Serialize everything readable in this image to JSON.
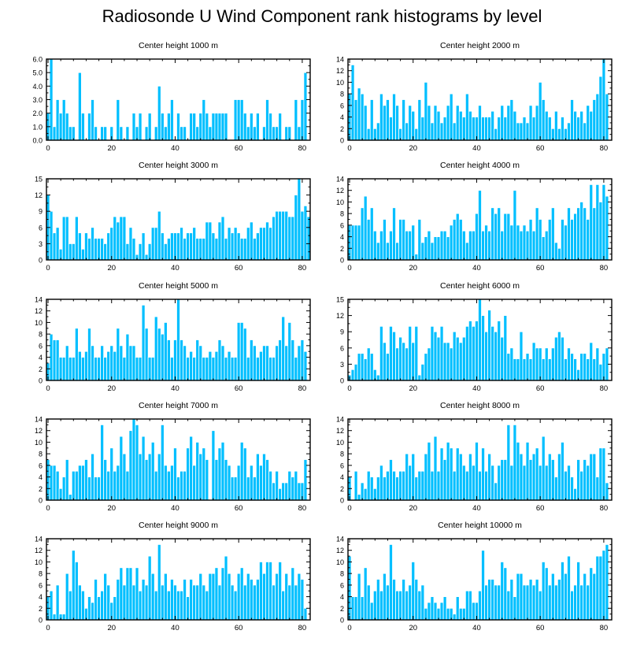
{
  "title": "Radiosonde U Wind Component rank histograms by level",
  "style": {
    "bar_color": "#00bfff",
    "bar_stroke": "#ffffff",
    "axis_color": "#000000"
  },
  "chart_data": [
    {
      "type": "bar",
      "title": "Center height 1000 m",
      "xlabel": "",
      "ylabel": "",
      "xlim": [
        -0.5,
        82.5
      ],
      "ylim": [
        0,
        6
      ],
      "xticks": [
        0,
        20,
        40,
        60,
        80
      ],
      "xtick_labels": [
        "0",
        "20",
        "40",
        "60",
        "80"
      ],
      "yticks": [
        0,
        1,
        2,
        3,
        4,
        5,
        6
      ],
      "ytick_labels": [
        "0.0",
        "1.0",
        "2.0",
        "3.0",
        "4.0",
        "5.0",
        "6.0"
      ],
      "values": [
        2,
        6,
        1,
        3,
        2,
        3,
        2,
        1,
        1,
        0,
        5,
        2,
        0,
        2,
        3,
        1,
        0,
        1,
        1,
        0,
        1,
        0,
        3,
        1,
        0,
        1,
        0,
        2,
        1,
        2,
        0,
        1,
        2,
        0,
        1,
        4,
        2,
        1,
        2,
        3,
        0,
        2,
        1,
        1,
        0,
        2,
        2,
        1,
        2,
        3,
        2,
        1,
        2,
        2,
        2,
        2,
        2,
        0,
        0,
        3,
        3,
        3,
        2,
        1,
        2,
        1,
        2,
        0,
        1,
        3,
        2,
        1,
        1,
        2,
        0,
        1,
        1,
        0,
        3,
        1,
        3,
        5
      ]
    },
    {
      "type": "bar",
      "title": "Center height 2000 m",
      "xlabel": "",
      "ylabel": "",
      "xlim": [
        -0.5,
        82.5
      ],
      "ylim": [
        0,
        14
      ],
      "xticks": [
        0,
        20,
        40,
        60,
        80
      ],
      "xtick_labels": [
        "0",
        "20",
        "40",
        "60",
        "80"
      ],
      "yticks": [
        0,
        2,
        4,
        6,
        8,
        10,
        12,
        14
      ],
      "ytick_labels": [
        "0",
        "2",
        "4",
        "6",
        "8",
        "10",
        "12",
        "14"
      ],
      "values": [
        8,
        13,
        7,
        9,
        8,
        6,
        2,
        7,
        2,
        3,
        8,
        6,
        7,
        4,
        8,
        6,
        2,
        7,
        3,
        6,
        5,
        2,
        7,
        4,
        10,
        6,
        3,
        6,
        5,
        3,
        4,
        6,
        8,
        3,
        6,
        5,
        4,
        8,
        5,
        4,
        4,
        6,
        4,
        4,
        4,
        5,
        2,
        4,
        6,
        4,
        6,
        7,
        5,
        3,
        3,
        4,
        3,
        6,
        4,
        6,
        10,
        7,
        5,
        4,
        2,
        5,
        2,
        4,
        2,
        3,
        7,
        5,
        4,
        5,
        3,
        6,
        5,
        7,
        8,
        11,
        14,
        8
      ]
    },
    {
      "type": "bar",
      "title": "Center height 3000 m",
      "xlabel": "",
      "ylabel": "",
      "xlim": [
        -0.5,
        82.5
      ],
      "ylim": [
        0,
        15
      ],
      "xticks": [
        0,
        20,
        40,
        60,
        80
      ],
      "xtick_labels": [
        "0",
        "20",
        "40",
        "60",
        "80"
      ],
      "yticks": [
        0,
        3,
        6,
        9,
        12,
        15
      ],
      "ytick_labels": [
        "0",
        "3",
        "6",
        "9",
        "12",
        "15"
      ],
      "values": [
        12,
        9,
        5,
        6,
        2,
        8,
        8,
        3,
        3,
        8,
        5,
        2,
        5,
        4,
        6,
        4,
        4,
        4,
        3,
        5,
        6,
        8,
        7,
        8,
        8,
        3,
        6,
        4,
        1,
        3,
        5,
        1,
        3,
        6,
        6,
        9,
        5,
        3,
        4,
        5,
        5,
        5,
        6,
        4,
        5,
        5,
        6,
        4,
        4,
        4,
        7,
        7,
        5,
        4,
        7,
        8,
        4,
        6,
        5,
        6,
        5,
        4,
        4,
        6,
        7,
        4,
        5,
        6,
        6,
        7,
        6,
        8,
        9,
        9,
        9,
        9,
        8,
        8,
        12,
        15,
        9,
        10,
        8
      ]
    },
    {
      "type": "bar",
      "title": "Center height 4000 m",
      "xlabel": "",
      "ylabel": "",
      "xlim": [
        -0.5,
        82.5
      ],
      "ylim": [
        0,
        14
      ],
      "xticks": [
        0,
        20,
        40,
        60,
        80
      ],
      "xtick_labels": [
        "0",
        "20",
        "40",
        "60",
        "80"
      ],
      "yticks": [
        0,
        2,
        4,
        6,
        8,
        10,
        12,
        14
      ],
      "ytick_labels": [
        "0",
        "2",
        "4",
        "6",
        "8",
        "10",
        "12",
        "14"
      ],
      "values": [
        6,
        6,
        6,
        6,
        9,
        11,
        7,
        9,
        5,
        3,
        5,
        7,
        3,
        5,
        9,
        3,
        7,
        7,
        5,
        5,
        6,
        1,
        7,
        3,
        4,
        5,
        3,
        4,
        4,
        5,
        5,
        4,
        6,
        7,
        8,
        7,
        5,
        3,
        5,
        5,
        8,
        12,
        5,
        6,
        5,
        9,
        8,
        9,
        5,
        8,
        8,
        6,
        12,
        6,
        5,
        6,
        5,
        7,
        5,
        9,
        7,
        4,
        5,
        7,
        9,
        3,
        2,
        7,
        6,
        9,
        7,
        8,
        9,
        10,
        9,
        7,
        13,
        9,
        13,
        10,
        13,
        11
      ]
    },
    {
      "type": "bar",
      "title": "Center height 5000 m",
      "xlabel": "",
      "ylabel": "",
      "xlim": [
        -0.5,
        82.5
      ],
      "ylim": [
        0,
        14
      ],
      "xticks": [
        0,
        20,
        40,
        60,
        80
      ],
      "xtick_labels": [
        "0",
        "20",
        "40",
        "60",
        "80"
      ],
      "yticks": [
        0,
        2,
        4,
        6,
        8,
        10,
        12,
        14
      ],
      "ytick_labels": [
        "0",
        "2",
        "4",
        "6",
        "8",
        "10",
        "12",
        "14"
      ],
      "values": [
        3,
        8,
        7,
        7,
        4,
        4,
        6,
        4,
        4,
        9,
        5,
        4,
        5,
        9,
        6,
        4,
        4,
        6,
        4,
        5,
        6,
        5,
        9,
        6,
        4,
        8,
        6,
        6,
        4,
        4,
        13,
        9,
        4,
        4,
        11,
        9,
        8,
        10,
        7,
        4,
        7,
        14,
        7,
        6,
        4,
        5,
        4,
        7,
        6,
        4,
        4,
        5,
        4,
        5,
        7,
        6,
        4,
        5,
        4,
        4,
        10,
        10,
        9,
        4,
        7,
        6,
        4,
        5,
        6,
        6,
        4,
        4,
        6,
        7,
        11,
        6,
        10,
        7,
        4,
        6,
        7,
        5
      ]
    },
    {
      "type": "bar",
      "title": "Center height 6000 m",
      "xlabel": "",
      "ylabel": "",
      "xlim": [
        -0.5,
        82.5
      ],
      "ylim": [
        0,
        15
      ],
      "xticks": [
        0,
        20,
        40,
        60,
        80
      ],
      "xtick_labels": [
        "0",
        "20",
        "40",
        "60",
        "80"
      ],
      "yticks": [
        0,
        3,
        6,
        9,
        12,
        15
      ],
      "ytick_labels": [
        "0",
        "3",
        "6",
        "9",
        "12",
        "15"
      ],
      "values": [
        1,
        2,
        3,
        5,
        5,
        4,
        6,
        5,
        2,
        1,
        10,
        7,
        5,
        10,
        9,
        6,
        8,
        7,
        6,
        10,
        7,
        10,
        1,
        3,
        5,
        6,
        10,
        9,
        8,
        10,
        7,
        7,
        6,
        9,
        8,
        7,
        8,
        10,
        11,
        10,
        11,
        15,
        12,
        9,
        13,
        10,
        9,
        11,
        8,
        12,
        5,
        6,
        4,
        4,
        9,
        4,
        5,
        4,
        7,
        6,
        6,
        4,
        6,
        4,
        6,
        8,
        9,
        8,
        4,
        6,
        5,
        4,
        2,
        5,
        5,
        4,
        7,
        4,
        6,
        3,
        5,
        6
      ]
    },
    {
      "type": "bar",
      "title": "Center height 7000 m",
      "xlabel": "",
      "ylabel": "",
      "xlim": [
        -0.5,
        82.5
      ],
      "ylim": [
        0,
        14
      ],
      "xticks": [
        0,
        20,
        40,
        60,
        80
      ],
      "xtick_labels": [
        "0",
        "20",
        "40",
        "60",
        "80"
      ],
      "yticks": [
        0,
        2,
        4,
        6,
        8,
        10,
        12,
        14
      ],
      "ytick_labels": [
        "0",
        "2",
        "4",
        "6",
        "8",
        "10",
        "12",
        "14"
      ],
      "values": [
        7,
        6,
        6,
        5,
        2,
        4,
        7,
        1,
        5,
        5,
        6,
        6,
        7,
        4,
        8,
        4,
        4,
        13,
        7,
        5,
        9,
        5,
        6,
        11,
        8,
        5,
        12,
        14,
        13,
        8,
        11,
        7,
        8,
        10,
        5,
        8,
        13,
        6,
        5,
        6,
        9,
        4,
        5,
        5,
        9,
        11,
        6,
        10,
        8,
        9,
        7,
        0,
        12,
        7,
        9,
        10,
        7,
        6,
        4,
        4,
        6,
        10,
        9,
        4,
        6,
        4,
        8,
        6,
        8,
        7,
        5,
        3,
        5,
        2,
        3,
        3,
        5,
        4,
        5,
        3,
        3,
        7
      ]
    },
    {
      "type": "bar",
      "title": "Center height 8000 m",
      "xlabel": "",
      "ylabel": "",
      "xlim": [
        -0.5,
        82.5
      ],
      "ylim": [
        0,
        14
      ],
      "xticks": [
        0,
        20,
        40,
        60,
        80
      ],
      "xtick_labels": [
        "0",
        "20",
        "40",
        "60",
        "80"
      ],
      "yticks": [
        0,
        2,
        4,
        6,
        8,
        10,
        12,
        14
      ],
      "ytick_labels": [
        "0",
        "2",
        "4",
        "6",
        "8",
        "10",
        "12",
        "14"
      ],
      "values": [
        4,
        0,
        5,
        1,
        3,
        2,
        5,
        4,
        2,
        4,
        6,
        4,
        5,
        7,
        5,
        4,
        5,
        5,
        8,
        6,
        8,
        4,
        5,
        5,
        8,
        10,
        5,
        11,
        5,
        9,
        7,
        10,
        9,
        5,
        9,
        8,
        6,
        5,
        8,
        6,
        10,
        5,
        9,
        5,
        8,
        6,
        3,
        6,
        7,
        7,
        13,
        6,
        13,
        10,
        8,
        6,
        10,
        7,
        8,
        9,
        6,
        11,
        6,
        8,
        7,
        4,
        8,
        10,
        5,
        6,
        4,
        2,
        7,
        5,
        7,
        6,
        8,
        8,
        4,
        9,
        9,
        3
      ]
    },
    {
      "type": "bar",
      "title": "Center height 9000 m",
      "xlabel": "",
      "ylabel": "",
      "xlim": [
        -0.5,
        82.5
      ],
      "ylim": [
        0,
        14
      ],
      "xticks": [
        0,
        20,
        40,
        60,
        80
      ],
      "xtick_labels": [
        "0",
        "20",
        "40",
        "60",
        "80"
      ],
      "yticks": [
        0,
        2,
        4,
        6,
        8,
        10,
        12,
        14
      ],
      "ytick_labels": [
        "0",
        "2",
        "4",
        "6",
        "8",
        "10",
        "12",
        "14"
      ],
      "values": [
        4,
        5,
        1,
        6,
        1,
        1,
        8,
        5,
        12,
        10,
        6,
        5,
        2,
        4,
        3,
        7,
        4,
        5,
        8,
        6,
        3,
        4,
        7,
        9,
        6,
        9,
        9,
        6,
        9,
        5,
        7,
        6,
        11,
        8,
        5,
        13,
        6,
        8,
        5,
        7,
        6,
        5,
        5,
        7,
        4,
        7,
        6,
        6,
        8,
        6,
        5,
        8,
        8,
        9,
        6,
        9,
        11,
        8,
        6,
        5,
        8,
        9,
        6,
        8,
        7,
        6,
        7,
        10,
        8,
        10,
        10,
        6,
        8,
        10,
        5,
        8,
        6,
        9,
        6,
        8,
        7,
        2
      ]
    },
    {
      "type": "bar",
      "title": "Center height 10000 m",
      "xlabel": "",
      "ylabel": "",
      "xlim": [
        -0.5,
        82.5
      ],
      "ylim": [
        0,
        14
      ],
      "xticks": [
        0,
        20,
        40,
        60,
        80
      ],
      "xtick_labels": [
        "0",
        "20",
        "40",
        "60",
        "80"
      ],
      "yticks": [
        0,
        2,
        4,
        6,
        8,
        10,
        12,
        14
      ],
      "ytick_labels": [
        "0",
        "2",
        "4",
        "6",
        "8",
        "10",
        "12",
        "14"
      ],
      "values": [
        11,
        4,
        4,
        8,
        4,
        9,
        6,
        3,
        5,
        7,
        5,
        8,
        6,
        13,
        7,
        5,
        5,
        7,
        5,
        6,
        10,
        7,
        5,
        6,
        2,
        3,
        4,
        3,
        2,
        3,
        4,
        2,
        2,
        1,
        4,
        2,
        2,
        5,
        5,
        3,
        3,
        5,
        12,
        6,
        7,
        7,
        6,
        6,
        10,
        9,
        5,
        7,
        4,
        8,
        8,
        6,
        6,
        7,
        6,
        7,
        5,
        10,
        9,
        6,
        8,
        6,
        7,
        10,
        8,
        11,
        5,
        6,
        10,
        6,
        8,
        6,
        9,
        8,
        11,
        11,
        12,
        13
      ]
    }
  ]
}
